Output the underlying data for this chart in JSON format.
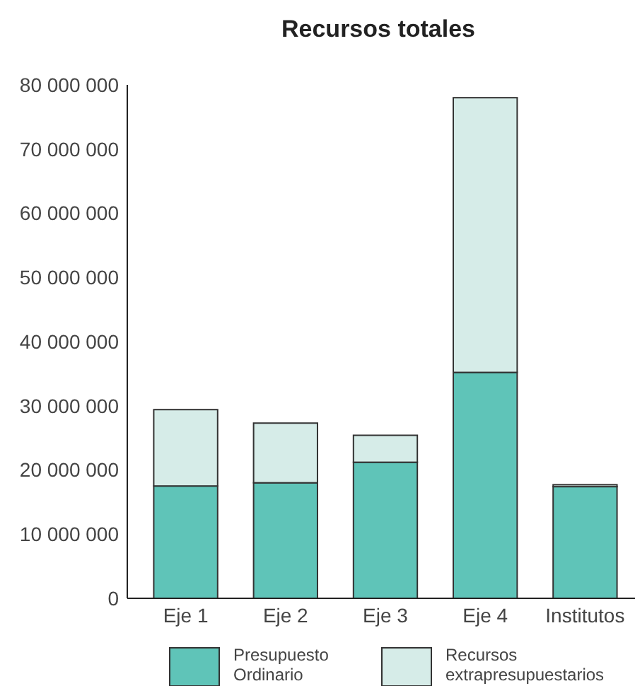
{
  "chart_data": {
    "type": "bar",
    "title": "Recursos totales",
    "stacked": true,
    "categories": [
      "Eje 1",
      "Eje 2",
      "Eje 3",
      "Eje 4",
      "Institutos"
    ],
    "series": [
      {
        "name": "Presupuesto Ordinario",
        "color": "#5fc4b8",
        "values": [
          17500000,
          18000000,
          21200000,
          35200000,
          17400000
        ]
      },
      {
        "name": "Recursos extrapresupuestarios",
        "color": "#d6ece8",
        "values": [
          11900000,
          9300000,
          4200000,
          42800000,
          300000
        ]
      }
    ],
    "ylim": [
      0,
      80000000
    ],
    "yticks": [
      {
        "value": 0,
        "label": "0"
      },
      {
        "value": 10000000,
        "label": "10 000 000"
      },
      {
        "value": 20000000,
        "label": "20 000 000"
      },
      {
        "value": 30000000,
        "label": "30 000 000"
      },
      {
        "value": 40000000,
        "label": "40 000 000"
      },
      {
        "value": 50000000,
        "label": "50 000 000"
      },
      {
        "value": 60000000,
        "label": "60 000 000"
      },
      {
        "value": 70000000,
        "label": "70 000 000"
      },
      {
        "value": 80000000,
        "label": "80 000 000"
      }
    ],
    "grid": false,
    "legend": "bottom"
  }
}
